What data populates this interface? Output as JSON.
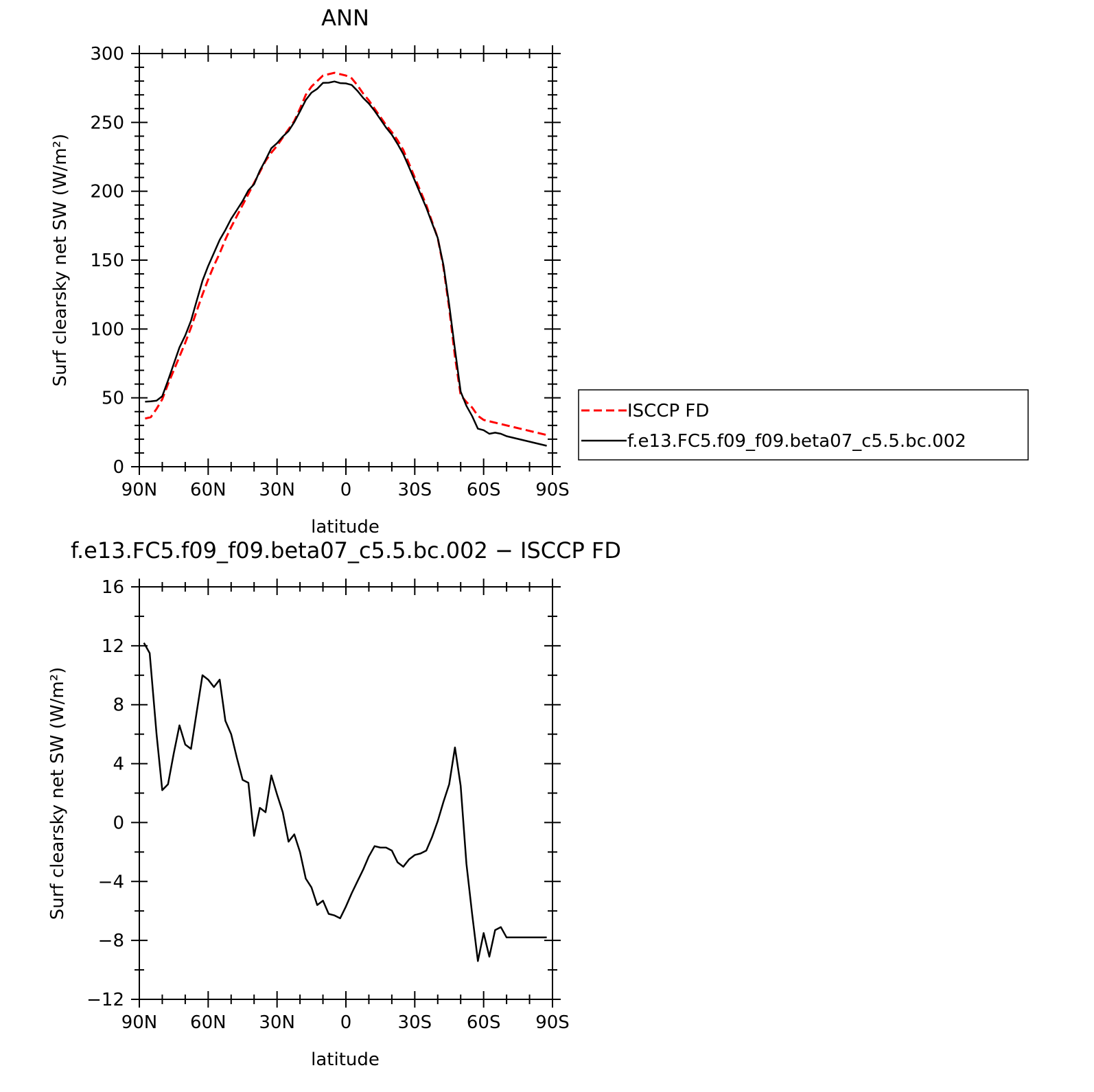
{
  "colors": {
    "observation": "#ff0000",
    "model": "#000000"
  },
  "chart_data": [
    {
      "type": "line",
      "title": "ANN",
      "xlabel": "latitude",
      "ylabel": "Surf clearsky net SW (W/m²)",
      "xlim": [
        90,
        -90
      ],
      "ylim": [
        0,
        300
      ],
      "xticks": [
        {
          "value": 90,
          "label": "90N"
        },
        {
          "value": 60,
          "label": "60N"
        },
        {
          "value": 30,
          "label": "30N"
        },
        {
          "value": 0,
          "label": "0"
        },
        {
          "value": -30,
          "label": "30S"
        },
        {
          "value": -60,
          "label": "60S"
        },
        {
          "value": -90,
          "label": "90S"
        }
      ],
      "yticks": [
        {
          "value": 0,
          "label": "0"
        },
        {
          "value": 50,
          "label": "50"
        },
        {
          "value": 100,
          "label": "100"
        },
        {
          "value": 150,
          "label": "150"
        },
        {
          "value": 200,
          "label": "200"
        },
        {
          "value": 250,
          "label": "250"
        },
        {
          "value": 300,
          "label": "300"
        }
      ],
      "legend": "right",
      "series": [
        {
          "name": "ISCCP FD",
          "style": "dashed",
          "color": "#ff0000",
          "x": [
            87.5,
            85,
            82.5,
            80,
            77.5,
            75,
            72.5,
            70,
            67.5,
            65,
            62.5,
            60,
            57.5,
            55,
            52.5,
            50,
            47.5,
            45,
            42.5,
            40,
            37.5,
            35,
            32.5,
            30,
            27.5,
            25,
            22.5,
            20,
            17.5,
            15,
            12.5,
            10,
            7.5,
            5,
            2.5,
            0,
            -2.5,
            -5,
            -7.5,
            -10,
            -12.5,
            -15,
            -17.5,
            -20,
            -22.5,
            -25,
            -27.5,
            -30,
            -32.5,
            -35,
            -37.5,
            -40,
            -42.5,
            -45,
            -47.5,
            -50,
            -52.5,
            -55,
            -57.5,
            -60,
            -62.5,
            -65,
            -67.5,
            -70,
            -72.5,
            -75,
            -77.5,
            -80,
            -82.5,
            -85,
            -87.5
          ],
          "y": [
            35,
            36,
            42,
            49,
            60,
            70,
            80,
            90,
            101,
            113,
            125,
            136,
            146,
            155,
            165,
            174,
            182,
            190,
            198,
            206,
            214,
            222,
            228,
            233,
            239,
            245,
            251,
            260,
            270,
            276,
            280,
            284,
            285,
            286,
            285,
            284,
            282,
            277,
            271,
            266,
            260,
            254,
            248,
            243,
            237,
            230,
            220,
            210,
            200,
            190,
            178,
            166,
            145,
            115,
            80,
            52,
            47,
            43,
            37,
            34,
            33,
            32,
            31,
            30,
            29,
            28,
            27,
            26,
            25,
            24,
            23
          ],
          "note_unused": ""
        },
        {
          "name": "f.e13.FC5.f09_f09.beta07_c5.5.bc.002",
          "style": "solid",
          "color": "#000000",
          "x": [],
          "y": []
        }
      ]
    },
    {
      "type": "line",
      "title": "f.e13.FC5.f09_f09.beta07_c5.5.bc.002 − ISCCP FD",
      "xlabel": "latitude",
      "ylabel": "Surf clearsky net SW (W/m²)",
      "xlim": [
        90,
        -90
      ],
      "ylim": [
        -12,
        16
      ],
      "xticks": [
        {
          "value": 90,
          "label": "90N"
        },
        {
          "value": 60,
          "label": "60N"
        },
        {
          "value": 30,
          "label": "30N"
        },
        {
          "value": 0,
          "label": "0"
        },
        {
          "value": -30,
          "label": "30S"
        },
        {
          "value": -60,
          "label": "60S"
        },
        {
          "value": -90,
          "label": "90S"
        }
      ],
      "yticks": [
        {
          "value": -12,
          "label": "−12"
        },
        {
          "value": -8,
          "label": "−8"
        },
        {
          "value": -4,
          "label": "−4"
        },
        {
          "value": 0,
          "label": "0"
        },
        {
          "value": 4,
          "label": "4"
        },
        {
          "value": 8,
          "label": "8"
        },
        {
          "value": 12,
          "label": "12"
        },
        {
          "value": 16,
          "label": "16"
        }
      ],
      "series": [
        {
          "name": "",
          "style": "solid",
          "color": "#000000",
          "x": [
            88,
            85.5,
            82.5,
            80,
            77.5,
            75,
            72.5,
            70,
            67.5,
            65,
            62.5,
            60,
            57.5,
            55,
            52.5,
            50,
            47.5,
            45,
            42.5,
            40,
            37.5,
            35,
            32.5,
            30,
            27.5,
            25,
            22.5,
            20,
            17.5,
            15,
            12.5,
            10,
            7.5,
            5,
            2.5,
            0,
            -2.5,
            -5,
            -7.5,
            -10,
            -12.5,
            -15,
            -17.5,
            -20,
            -22.5,
            -25,
            -27.5,
            -30,
            -32.5,
            -35,
            -37.5,
            -40,
            -42.5,
            -45,
            -47.5,
            -50,
            -52.5,
            -55,
            -57.5,
            -60,
            -62.5,
            -65,
            -67.5,
            -70,
            -72.5,
            -75,
            -77.5,
            -80,
            -82.5,
            -85,
            -87.5
          ],
          "y": [
            12.2,
            11.5,
            6.0,
            2.2,
            2.6,
            4.7,
            6.6,
            5.3,
            5.0,
            7.5,
            10.0,
            9.7,
            9.2,
            9.7,
            6.9,
            6.0,
            4.4,
            2.9,
            2.7,
            -0.9,
            1.0,
            0.7,
            3.2,
            1.9,
            0.7,
            -1.3,
            -0.8,
            -2.0,
            -3.8,
            -4.4,
            -5.6,
            -5.3,
            -6.2,
            -6.3,
            -6.5,
            -5.7,
            -4.8,
            -4.0,
            -3.2,
            -2.3,
            -1.6,
            -1.7,
            -1.7,
            -1.9,
            -2.7,
            -3.0,
            -2.5,
            -2.2,
            -2.1,
            -1.9,
            -1.0,
            0.1,
            1.4,
            2.6,
            5.1,
            2.5,
            -2.8,
            -6.2,
            -9.4,
            -7.5,
            -9.1,
            -7.3,
            -7.1,
            -7.8,
            -7.8,
            -7.8,
            -7.8,
            -7.8,
            -7.8,
            -7.8,
            -7.8
          ]
        }
      ]
    }
  ]
}
